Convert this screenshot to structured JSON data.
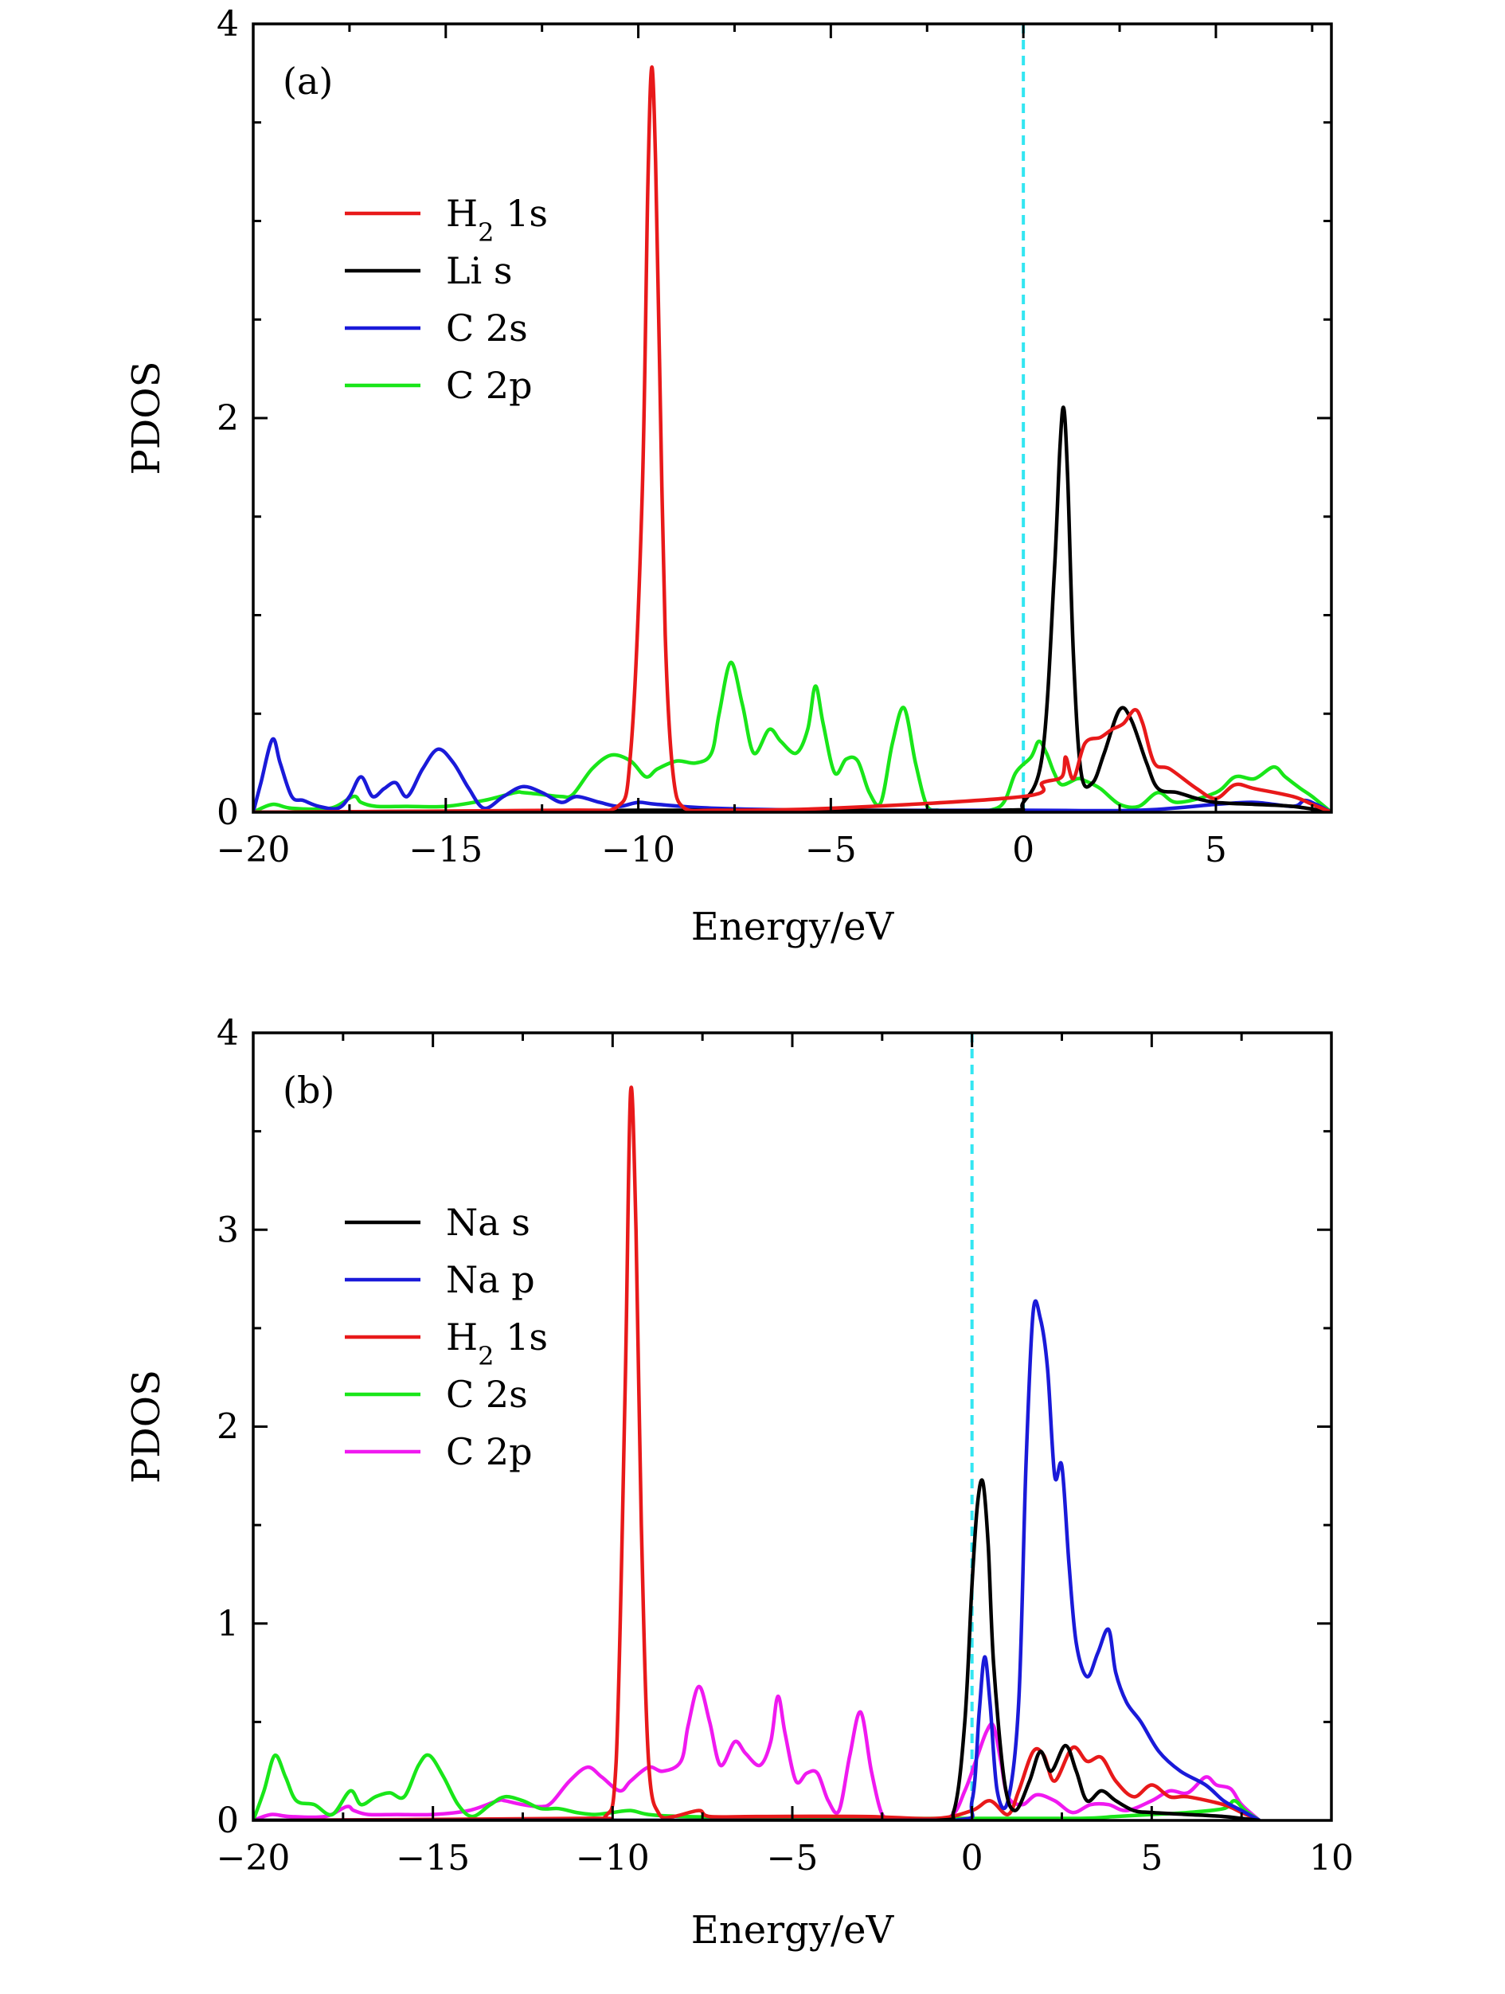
{
  "chart_data": [
    {
      "type": "line",
      "panel_label": "(a)",
      "xlabel": "Energy/eV",
      "ylabel": "PDOS",
      "xlim": [
        -20,
        8
      ],
      "ylim": [
        0,
        4
      ],
      "x_ticks": [
        -20,
        -15,
        -10,
        -5,
        0,
        5
      ],
      "x_tick_labels": [
        "−20",
        "−15",
        "−10",
        "−5",
        "0",
        "5"
      ],
      "y_ticks": [
        0,
        2,
        4
      ],
      "y_tick_labels": [
        "0",
        "2",
        "4"
      ],
      "fermi_level": 0,
      "fermi_color": "#33e6f2",
      "legend_position": "upper-left",
      "series": [
        {
          "name": "H₂ 1s",
          "color": "#e8191a",
          "x": [
            -20,
            -12,
            -10.6,
            -10.2,
            -9.9,
            -9.75,
            -9.65,
            -9.55,
            -9.45,
            -9.3,
            -9.1,
            -8.8,
            -8,
            -5,
            0,
            0.5,
            1,
            1.1,
            1.3,
            1.6,
            2,
            2.3,
            2.6,
            2.9,
            3.1,
            3.4,
            3.8,
            4.5,
            5,
            5.5,
            6,
            7,
            7.5,
            8
          ],
          "y": [
            0,
            0.01,
            0.02,
            0.3,
            1.6,
            3.2,
            3.78,
            3.3,
            2.3,
            0.9,
            0.2,
            0.02,
            0.01,
            0.02,
            0.08,
            0.15,
            0.18,
            0.28,
            0.17,
            0.35,
            0.38,
            0.42,
            0.45,
            0.52,
            0.45,
            0.25,
            0.22,
            0.12,
            0.07,
            0.14,
            0.12,
            0.08,
            0.04,
            0
          ]
        },
        {
          "name": "Li s",
          "color": "#000000",
          "x": [
            -20,
            -10,
            -5,
            -0.5,
            0,
            0.5,
            0.8,
            0.95,
            1.05,
            1.15,
            1.3,
            1.5,
            1.8,
            2.1,
            2.5,
            2.8,
            3.2,
            3.5,
            4,
            4.5,
            5,
            6,
            7,
            8
          ],
          "y": [
            0,
            0.01,
            0.01,
            0.01,
            0.05,
            0.3,
            1.2,
            1.85,
            2.05,
            1.7,
            0.8,
            0.2,
            0.15,
            0.3,
            0.52,
            0.47,
            0.25,
            0.12,
            0.1,
            0.07,
            0.05,
            0.04,
            0.03,
            0
          ]
        },
        {
          "name": "C 2s",
          "color": "#1a1ad9",
          "x": [
            -20,
            -19.8,
            -19.5,
            -19.3,
            -19.0,
            -18.7,
            -18.3,
            -17.8,
            -17.5,
            -17.2,
            -16.9,
            -16.6,
            -16.3,
            -16.0,
            -15.6,
            -15.2,
            -14.8,
            -14.4,
            -14.0,
            -13.5,
            -13.0,
            -12.5,
            -12.0,
            -11.6,
            -11.0,
            -10.5,
            -10.0,
            -9.5,
            -8,
            -5,
            0,
            3,
            5,
            6,
            7,
            7.3,
            7.6,
            8
          ],
          "y": [
            0,
            0.15,
            0.37,
            0.25,
            0.08,
            0.06,
            0.03,
            0.02,
            0.08,
            0.18,
            0.08,
            0.12,
            0.15,
            0.08,
            0.22,
            0.32,
            0.25,
            0.12,
            0.02,
            0.08,
            0.13,
            0.1,
            0.05,
            0.08,
            0.05,
            0.03,
            0.05,
            0.04,
            0.02,
            0.01,
            0.01,
            0.01,
            0.04,
            0.05,
            0.03,
            0.06,
            0.04,
            0
          ]
        },
        {
          "name": "C 2p",
          "color": "#19e619",
          "x": [
            -20,
            -19.5,
            -19.0,
            -18,
            -17.4,
            -17.2,
            -16.8,
            -16,
            -15,
            -14,
            -13.2,
            -13.0,
            -12.5,
            -12.0,
            -11.7,
            -11.2,
            -10.7,
            -10.2,
            -9.8,
            -9.5,
            -9.0,
            -8.5,
            -8.1,
            -7.9,
            -7.6,
            -7.3,
            -7.0,
            -6.6,
            -6.3,
            -5.9,
            -5.6,
            -5.4,
            -5.2,
            -4.9,
            -4.6,
            -4.3,
            -4.0,
            -3.7,
            -3.4,
            -3.1,
            -2.8,
            -2.5,
            -2.2,
            -2.0,
            -1.5,
            -0.6,
            -0.2,
            0.2,
            0.4,
            0.6,
            0.8,
            1.0,
            1.4,
            1.6,
            2.0,
            2.5,
            3.0,
            3.5,
            4,
            5,
            5.5,
            6,
            6.5,
            6.8,
            7.2,
            7.5,
            8
          ],
          "y": [
            0,
            0.04,
            0.02,
            0.02,
            0.08,
            0.05,
            0.03,
            0.03,
            0.03,
            0.06,
            0.1,
            0.1,
            0.09,
            0.08,
            0.09,
            0.22,
            0.29,
            0.26,
            0.18,
            0.22,
            0.26,
            0.25,
            0.3,
            0.5,
            0.76,
            0.55,
            0.3,
            0.42,
            0.36,
            0.3,
            0.42,
            0.64,
            0.45,
            0.2,
            0.27,
            0.26,
            0.1,
            0.05,
            0.35,
            0.53,
            0.25,
            0.03,
            0.01,
            0,
            0,
            0.03,
            0.2,
            0.28,
            0.36,
            0.3,
            0.2,
            0.14,
            0.17,
            0.16,
            0.12,
            0.04,
            0.03,
            0.1,
            0.05,
            0.1,
            0.18,
            0.17,
            0.23,
            0.18,
            0.12,
            0.08,
            0
          ]
        }
      ]
    },
    {
      "type": "line",
      "panel_label": "(b)",
      "xlabel": "Energy/eV",
      "ylabel": "PDOS",
      "xlim": [
        -20,
        10
      ],
      "ylim": [
        0,
        4
      ],
      "x_ticks": [
        -20,
        -15,
        -10,
        -5,
        0,
        5,
        10
      ],
      "x_tick_labels": [
        "−20",
        "−15",
        "−10",
        "−5",
        "0",
        "5",
        "10"
      ],
      "y_ticks": [
        0,
        1,
        2,
        3,
        4
      ],
      "y_tick_labels": [
        "0",
        "1",
        "2",
        "3",
        "4"
      ],
      "fermi_level": 0,
      "fermi_color": "#33e6f2",
      "legend_position": "upper-left",
      "series": [
        {
          "name": "Na s",
          "color": "#000000",
          "x": [
            -20,
            -5,
            -1.0,
            -0.5,
            -0.2,
            0.0,
            0.15,
            0.3,
            0.45,
            0.6,
            0.9,
            1.2,
            1.6,
            1.9,
            2.2,
            2.6,
            2.9,
            3.2,
            3.6,
            4.0,
            4.5,
            5,
            6,
            7,
            7.5,
            8
          ],
          "y": [
            0,
            0,
            0,
            0.05,
            0.5,
            1.2,
            1.6,
            1.72,
            1.4,
            0.8,
            0.2,
            0.05,
            0.2,
            0.35,
            0.25,
            0.38,
            0.25,
            0.1,
            0.15,
            0.1,
            0.05,
            0.04,
            0.03,
            0.02,
            0.01,
            0
          ]
        },
        {
          "name": "Na p",
          "color": "#1a1ad9",
          "x": [
            -20,
            -5,
            -0.5,
            0.0,
            0.2,
            0.35,
            0.5,
            0.7,
            1.0,
            1.3,
            1.5,
            1.7,
            1.9,
            2.1,
            2.3,
            2.5,
            2.7,
            2.9,
            3.2,
            3.5,
            3.8,
            4.0,
            4.3,
            4.7,
            5.2,
            5.8,
            6.5,
            7,
            7.5,
            8
          ],
          "y": [
            0,
            0,
            0,
            0.1,
            0.55,
            0.83,
            0.6,
            0.15,
            0.1,
            0.6,
            1.8,
            2.58,
            2.55,
            2.3,
            1.75,
            1.8,
            1.3,
            0.9,
            0.73,
            0.85,
            0.97,
            0.75,
            0.6,
            0.5,
            0.35,
            0.25,
            0.18,
            0.1,
            0.05,
            0
          ]
        },
        {
          "name": "H₂ 1s",
          "color": "#e8191a",
          "x": [
            -20,
            -11,
            -10.2,
            -9.9,
            -9.65,
            -9.5,
            -9.35,
            -9.2,
            -9.0,
            -8.7,
            -8.3,
            -7.6,
            -7.3,
            -6,
            -3,
            -1,
            0,
            0.5,
            1.0,
            1.3,
            1.7,
            2.0,
            2.3,
            2.8,
            3.2,
            3.6,
            4.0,
            4.5,
            5.0,
            5.5,
            6,
            7,
            7.5,
            8
          ],
          "y": [
            0,
            0.01,
            0.02,
            0.3,
            2.2,
            3.7,
            3.0,
            1.5,
            0.3,
            0.03,
            0.02,
            0.05,
            0.02,
            0.02,
            0.02,
            0.01,
            0.05,
            0.1,
            0.03,
            0.15,
            0.35,
            0.33,
            0.2,
            0.37,
            0.3,
            0.32,
            0.2,
            0.12,
            0.18,
            0.12,
            0.12,
            0.08,
            0.04,
            0
          ]
        },
        {
          "name": "C 2s",
          "color": "#19e619",
          "x": [
            -20,
            -19.7,
            -19.4,
            -19.1,
            -18.8,
            -18.3,
            -17.8,
            -17.3,
            -17.0,
            -16.6,
            -16.2,
            -15.8,
            -15.4,
            -15.1,
            -14.7,
            -14.3,
            -13.9,
            -13.4,
            -13.0,
            -12.5,
            -12.0,
            -11.5,
            -11.0,
            -10.5,
            -10.0,
            -9.5,
            -9.0,
            -8,
            -5,
            0,
            3,
            4,
            5,
            6,
            7,
            7.3,
            7.6,
            8
          ],
          "y": [
            0,
            0.15,
            0.33,
            0.22,
            0.1,
            0.08,
            0.03,
            0.15,
            0.08,
            0.12,
            0.14,
            0.12,
            0.28,
            0.33,
            0.22,
            0.08,
            0.02,
            0.08,
            0.12,
            0.1,
            0.06,
            0.06,
            0.04,
            0.03,
            0.04,
            0.05,
            0.03,
            0.02,
            0.01,
            0.01,
            0.01,
            0.02,
            0.03,
            0.04,
            0.06,
            0.1,
            0.05,
            0
          ]
        },
        {
          "name": "C 2p",
          "color": "#f019f0",
          "x": [
            -20,
            -19.5,
            -19,
            -18,
            -17.4,
            -17.2,
            -16.8,
            -16,
            -15,
            -14,
            -13.2,
            -13.0,
            -12.5,
            -12.0,
            -11.7,
            -11.2,
            -10.7,
            -10.3,
            -9.8,
            -9.5,
            -9.0,
            -8.6,
            -8.1,
            -7.9,
            -7.6,
            -7.3,
            -7.0,
            -6.6,
            -6.3,
            -5.9,
            -5.6,
            -5.4,
            -5.2,
            -4.9,
            -4.6,
            -4.3,
            -4.0,
            -3.7,
            -3.4,
            -3.1,
            -2.8,
            -2.5,
            -2.2,
            -2.0,
            -1.5,
            -0.6,
            -0.2,
            0.1,
            0.4,
            0.6,
            0.8,
            1.0,
            1.4,
            1.8,
            2.3,
            2.8,
            3.3,
            3.8,
            4.3,
            5.0,
            5.5,
            6.0,
            6.5,
            6.8,
            7.2,
            7.5,
            8
          ],
          "y": [
            0,
            0.03,
            0.02,
            0.02,
            0.07,
            0.05,
            0.03,
            0.03,
            0.03,
            0.05,
            0.1,
            0.1,
            0.08,
            0.07,
            0.09,
            0.2,
            0.27,
            0.22,
            0.15,
            0.2,
            0.27,
            0.25,
            0.3,
            0.48,
            0.68,
            0.5,
            0.28,
            0.4,
            0.34,
            0.28,
            0.4,
            0.63,
            0.44,
            0.2,
            0.24,
            0.24,
            0.1,
            0.05,
            0.33,
            0.55,
            0.25,
            0.03,
            0.01,
            0,
            0,
            0.02,
            0.15,
            0.3,
            0.45,
            0.48,
            0.3,
            0.12,
            0.08,
            0.13,
            0.1,
            0.04,
            0.08,
            0.08,
            0.05,
            0.1,
            0.15,
            0.14,
            0.22,
            0.18,
            0.16,
            0.08,
            0
          ]
        }
      ]
    }
  ]
}
